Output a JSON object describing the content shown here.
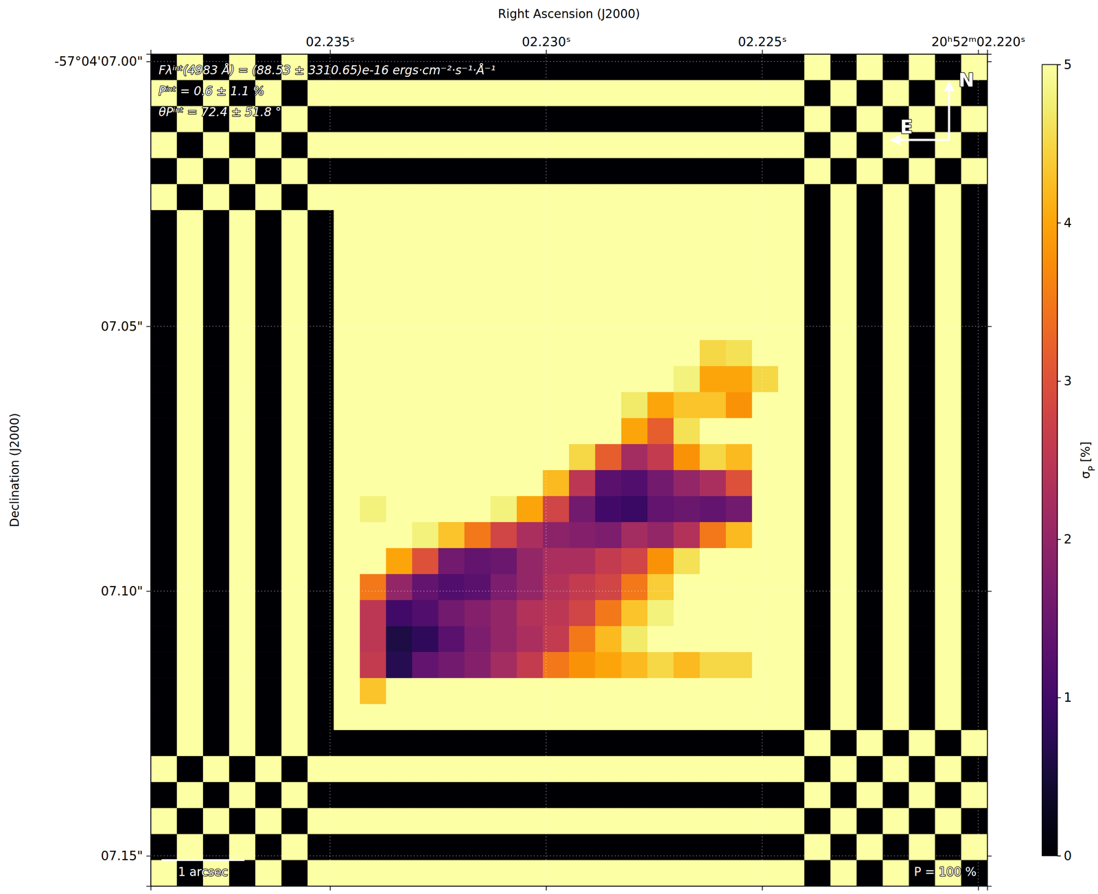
{
  "chart_data": {
    "type": "heatmap",
    "x_label": "Right Ascension (J2000)",
    "y_label": "Declination (J2000)",
    "xlim": [
      2.23915,
      2.21979
    ],
    "ylim": [
      6.9986,
      7.1557
    ],
    "xticks": [
      {
        "value": 2.235,
        "label": "02.235ˢ"
      },
      {
        "value": 2.23,
        "label": "02.230ˢ"
      },
      {
        "value": 2.225,
        "label": "02.225ˢ"
      },
      {
        "value": 2.22,
        "label": "20ʰ52ᵐ02.220ˢ"
      }
    ],
    "yticks": [
      {
        "value": 7,
        "label": "-57°04'07.00\""
      },
      {
        "value": 7.05,
        "label": "07.05\""
      },
      {
        "value": 7.1,
        "label": "07.10\""
      },
      {
        "value": 7.15,
        "label": "07.15\""
      }
    ],
    "grid": true,
    "color": "inferno",
    "colorbar": {
      "label": "σP [%]",
      "range": [
        0,
        5
      ],
      "ticks": [
        0,
        1,
        2,
        3,
        4,
        5
      ]
    },
    "annotations": [
      "Fλⁱⁿᵗ(4983 Å) = (88.53 ± 3310.65)e-16 ergs·cm⁻²·s⁻¹·Å⁻¹",
      "Pⁱⁿᵗ = 0.6 ± 1.1 %",
      "θPⁱⁿᵗ = 72.4 ± 51.8 °"
    ],
    "compass": {
      "north": "N",
      "east": "E"
    },
    "scale_bar_label": "1 arcsec",
    "reference_label": "P = 100 %",
    "cells": [
      [
        0,
        5,
        0,
        5,
        0,
        5,
        0,
        0,
        0,
        0,
        0,
        0,
        0,
        0,
        0,
        0,
        0,
        0,
        0,
        0,
        0,
        0,
        0,
        0,
        0,
        5,
        0,
        5,
        0,
        5,
        0,
        5
      ],
      [
        5,
        0,
        5,
        0,
        5,
        0,
        5,
        5,
        5,
        5,
        5,
        5,
        5,
        5,
        5,
        5,
        5,
        5,
        5,
        5,
        5,
        5,
        5,
        5,
        5,
        0,
        5,
        0,
        5,
        0,
        5,
        0
      ],
      [
        0,
        5,
        0,
        5,
        0,
        5,
        0,
        0,
        0,
        0,
        0,
        0,
        0,
        0,
        0,
        0,
        0,
        0,
        0,
        0,
        0,
        0,
        0,
        0,
        0,
        5,
        0,
        5,
        0,
        5,
        0,
        5
      ],
      [
        5,
        0,
        5,
        0,
        5,
        0,
        5,
        5,
        5,
        5,
        5,
        5,
        5,
        5,
        5,
        5,
        5,
        5,
        5,
        5,
        5,
        5,
        5,
        5,
        5,
        0,
        5,
        0,
        5,
        0,
        5,
        0
      ],
      [
        0,
        5,
        0,
        5,
        0,
        5,
        0,
        0,
        0,
        0,
        0,
        0,
        0,
        0,
        0,
        0,
        0,
        0,
        0,
        0,
        0,
        0,
        0,
        0,
        0,
        5,
        0,
        5,
        0,
        5,
        0,
        5
      ],
      [
        5,
        0,
        5,
        0,
        5,
        0,
        5,
        5,
        5,
        5,
        5,
        5,
        5,
        5,
        5,
        5,
        5,
        5,
        5,
        5,
        5,
        5,
        5,
        5,
        5,
        0,
        5,
        0,
        5,
        0,
        5,
        0
      ],
      [
        0,
        5,
        0,
        5,
        0,
        5,
        0,
        5,
        5,
        5,
        5,
        5,
        5,
        5,
        5,
        5,
        5,
        5,
        5,
        5,
        5,
        5,
        5,
        5,
        5,
        0,
        5,
        0,
        5,
        0,
        5,
        0
      ],
      [
        0,
        5,
        0,
        5,
        0,
        5,
        0,
        5,
        5,
        5,
        5,
        5,
        5,
        5,
        5,
        5,
        5,
        5,
        5,
        5,
        5,
        5,
        5,
        5,
        5,
        0,
        5,
        0,
        5,
        0,
        5,
        0
      ],
      [
        0,
        5,
        0,
        5,
        0,
        5,
        0,
        5,
        5,
        5,
        5,
        5,
        5,
        5,
        5,
        5,
        5,
        5,
        5,
        5,
        5,
        5,
        5,
        5,
        5,
        0,
        5,
        0,
        5,
        0,
        5,
        0
      ],
      [
        0,
        5,
        0,
        5,
        0,
        5,
        0,
        5,
        5,
        5,
        5,
        5,
        5,
        5,
        5,
        5,
        5,
        5,
        5,
        5,
        5,
        5,
        5,
        5,
        5,
        0,
        5,
        0,
        5,
        0,
        5,
        0
      ],
      [
        0,
        5,
        0,
        5,
        0,
        5,
        0,
        5,
        5,
        5,
        5,
        5,
        5,
        5,
        5,
        5,
        5,
        5,
        5,
        5,
        5,
        5,
        5,
        5,
        5,
        0,
        5,
        0,
        5,
        0,
        5,
        0
      ],
      [
        0,
        5,
        0,
        5,
        0,
        5,
        0,
        5,
        5,
        5,
        5,
        5,
        5,
        5,
        5,
        5,
        5,
        5,
        5,
        5,
        5,
        4.5,
        4.6,
        5,
        5,
        0,
        5,
        0,
        5,
        0,
        5,
        0
      ],
      [
        0,
        5,
        0,
        5,
        0,
        5,
        0,
        5,
        5,
        5,
        5,
        5,
        5,
        5,
        5,
        5,
        5,
        5,
        5,
        5,
        4.8,
        4,
        4,
        4.5,
        5,
        0,
        5,
        0,
        5,
        0,
        5,
        0
      ],
      [
        0,
        5,
        0,
        5,
        0,
        5,
        0,
        5,
        5,
        5,
        5,
        5,
        5,
        5,
        5,
        5,
        5,
        5,
        4.7,
        4,
        4.3,
        4.3,
        3.8,
        5,
        5,
        0,
        5,
        0,
        5,
        0,
        5,
        0
      ],
      [
        0,
        5,
        0,
        5,
        0,
        5,
        0,
        5,
        5,
        5,
        5,
        5,
        5,
        5,
        5,
        5,
        5,
        5,
        4,
        3.2,
        4.6,
        5,
        5,
        5,
        5,
        0,
        5,
        0,
        5,
        0,
        5,
        0
      ],
      [
        0,
        5,
        0,
        5,
        0,
        5,
        0,
        5,
        5,
        5,
        5,
        5,
        5,
        5,
        5,
        5,
        4.5,
        3.2,
        2.2,
        2.6,
        3.8,
        4.5,
        4.2,
        5,
        5,
        0,
        5,
        0,
        5,
        0,
        5,
        0
      ],
      [
        0,
        5,
        0,
        5,
        0,
        5,
        0,
        5,
        5,
        5,
        5,
        5,
        5,
        5,
        5,
        4.2,
        2.5,
        1.3,
        1.2,
        1.6,
        2,
        2.3,
        3,
        5,
        5,
        0,
        5,
        0,
        5,
        0,
        5,
        0
      ],
      [
        0,
        5,
        0,
        5,
        0,
        5,
        0,
        5,
        4.8,
        5,
        5,
        5,
        5,
        4.8,
        4,
        2.8,
        1.6,
        1,
        0.9,
        1.4,
        1.5,
        1.4,
        1.6,
        5,
        5,
        0,
        5,
        0,
        5,
        0,
        5,
        0
      ],
      [
        0,
        5,
        0,
        5,
        0,
        5,
        0,
        5,
        5,
        5,
        4.8,
        4.3,
        3.5,
        2.8,
        2.3,
        1.9,
        1.8,
        1.7,
        2.2,
        2,
        2.4,
        3.5,
        4.2,
        5,
        5,
        0,
        5,
        0,
        5,
        0,
        5,
        0
      ],
      [
        0,
        5,
        0,
        5,
        0,
        5,
        0,
        5,
        5,
        4,
        3,
        1.6,
        1.4,
        1.5,
        2,
        2.3,
        2.3,
        2.6,
        2.8,
        3.8,
        4.6,
        5,
        5,
        5,
        5,
        0,
        5,
        0,
        5,
        0,
        5,
        0
      ],
      [
        0,
        5,
        0,
        5,
        0,
        5,
        0,
        5,
        3.5,
        2,
        1.4,
        1.2,
        1.3,
        1.7,
        2,
        2.4,
        2.6,
        2.8,
        3.5,
        4.4,
        5,
        5,
        5,
        5,
        5,
        0,
        5,
        0,
        5,
        0,
        5,
        0
      ],
      [
        0,
        5,
        0,
        5,
        0,
        5,
        0,
        5,
        2.5,
        1,
        1.2,
        1.6,
        1.8,
        2,
        2.4,
        2.5,
        2.8,
        3.5,
        4.3,
        4.8,
        5,
        5,
        5,
        5,
        5,
        0,
        5,
        0,
        5,
        0,
        5,
        0
      ],
      [
        0,
        5,
        0,
        5,
        0,
        5,
        0,
        5,
        2.5,
        0.6,
        0.8,
        1.3,
        1.7,
        2,
        2.3,
        2.6,
        3.5,
        4.2,
        4.7,
        5,
        5,
        5,
        5,
        5,
        5,
        0,
        5,
        0,
        5,
        0,
        5,
        0
      ],
      [
        0,
        5,
        0,
        5,
        0,
        5,
        0,
        5,
        2.6,
        0.7,
        1.4,
        1.6,
        1.8,
        2.2,
        2.6,
        3.5,
        3.8,
        4,
        4.2,
        4.5,
        4.2,
        4.5,
        4.5,
        5,
        5,
        0,
        5,
        0,
        5,
        0,
        5,
        0
      ],
      [
        0,
        5,
        0,
        5,
        0,
        5,
        0,
        5,
        4.3,
        5,
        5,
        5,
        5,
        5,
        5,
        5,
        5,
        5,
        5,
        5,
        5,
        5,
        5,
        5,
        5,
        0,
        5,
        0,
        5,
        0,
        5,
        0
      ],
      [
        0,
        5,
        0,
        5,
        0,
        5,
        0,
        5,
        5,
        5,
        5,
        5,
        5,
        5,
        5,
        5,
        5,
        5,
        5,
        5,
        5,
        5,
        5,
        5,
        5,
        0,
        5,
        0,
        5,
        0,
        5,
        0
      ],
      [
        0,
        5,
        0,
        5,
        0,
        5,
        0,
        0,
        0,
        0,
        0,
        0,
        0,
        0,
        0,
        0,
        0,
        0,
        0,
        0,
        0,
        0,
        0,
        0,
        0,
        5,
        0,
        5,
        0,
        5,
        0,
        5
      ],
      [
        5,
        0,
        5,
        0,
        5,
        0,
        5,
        5,
        5,
        5,
        5,
        5,
        5,
        5,
        5,
        5,
        5,
        5,
        5,
        5,
        5,
        5,
        5,
        5,
        5,
        0,
        5,
        0,
        5,
        0,
        5,
        0
      ],
      [
        0,
        5,
        0,
        5,
        0,
        5,
        0,
        0,
        0,
        0,
        0,
        0,
        0,
        0,
        0,
        0,
        0,
        0,
        0,
        0,
        0,
        0,
        0,
        0,
        0,
        5,
        0,
        5,
        0,
        5,
        0,
        5
      ],
      [
        5,
        0,
        5,
        0,
        5,
        0,
        5,
        5,
        5,
        5,
        5,
        5,
        5,
        5,
        5,
        5,
        5,
        5,
        5,
        5,
        5,
        5,
        5,
        5,
        5,
        0,
        5,
        0,
        5,
        0,
        5,
        0
      ],
      [
        0,
        5,
        0,
        5,
        0,
        5,
        0,
        0,
        0,
        0,
        0,
        0,
        0,
        0,
        0,
        0,
        0,
        0,
        0,
        0,
        0,
        0,
        0,
        0,
        0,
        5,
        0,
        5,
        0,
        5,
        0,
        5
      ],
      [
        5,
        0,
        5,
        0,
        5,
        0,
        5,
        5,
        5,
        5,
        5,
        5,
        5,
        5,
        5,
        5,
        5,
        5,
        5,
        5,
        5,
        5,
        5,
        5,
        5,
        0,
        5,
        0,
        5,
        0,
        5,
        0
      ]
    ]
  }
}
